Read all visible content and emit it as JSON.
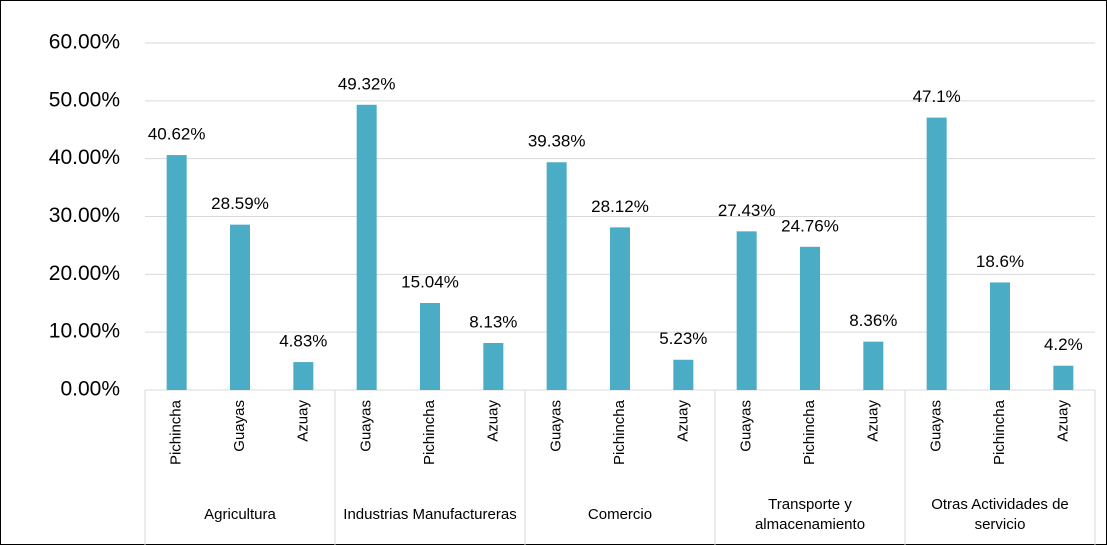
{
  "chart_data": {
    "type": "bar",
    "color": "#4bacc6",
    "grid": true,
    "ylim": [
      0,
      60
    ],
    "yticks": [
      {
        "value": 0,
        "label": "0.00%"
      },
      {
        "value": 10,
        "label": "10.00%"
      },
      {
        "value": 20,
        "label": "20.00%"
      },
      {
        "value": 30,
        "label": "30.00%"
      },
      {
        "value": 40,
        "label": "40.00%"
      },
      {
        "value": 50,
        "label": "50.00%"
      },
      {
        "value": 60,
        "label": "60.00%"
      }
    ],
    "groups": [
      {
        "name": "Agricultura",
        "categories": [
          "Pichincha",
          "Guayas",
          "Azuay"
        ],
        "values": [
          40.62,
          28.59,
          4.83
        ],
        "value_labels": [
          "40.62%",
          "28.59%",
          "4.83%"
        ]
      },
      {
        "name": "Industrias Manufactureras",
        "categories": [
          "Guayas",
          "Pichincha",
          "Azuay"
        ],
        "values": [
          49.32,
          15.04,
          8.13
        ],
        "value_labels": [
          "49.32%",
          "15.04%",
          "8.13%"
        ]
      },
      {
        "name": "Comercio",
        "categories": [
          "Guayas",
          "Pichincha",
          "Azuay"
        ],
        "values": [
          39.38,
          28.12,
          5.23
        ],
        "value_labels": [
          "39.38%",
          "28.12%",
          "5.23%"
        ]
      },
      {
        "name": "Transporte y almacenamiento",
        "categories": [
          "Guayas",
          "Pichincha",
          "Azuay"
        ],
        "values": [
          27.43,
          24.76,
          8.36
        ],
        "value_labels": [
          "27.43%",
          "24.76%",
          "8.36%"
        ]
      },
      {
        "name": "Otras Actividades de servicio",
        "categories": [
          "Guayas",
          "Pichincha",
          "Azuay"
        ],
        "values": [
          47.1,
          18.6,
          4.2
        ],
        "value_labels": [
          "47.1%",
          "18.6%",
          "4.2%"
        ]
      }
    ]
  }
}
